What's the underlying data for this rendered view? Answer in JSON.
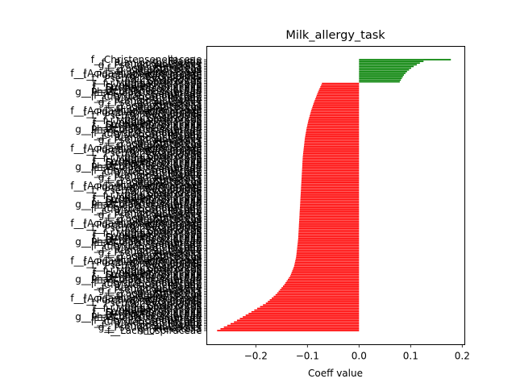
{
  "chart_data": {
    "type": "bar",
    "orientation": "horizontal",
    "title": "Milk_allergy_task",
    "xlabel": "Coeff value",
    "ylabel": "",
    "xlim": [
      -0.295,
      0.205
    ],
    "x_ticks": [
      {
        "value": -0.2,
        "label": "−0.2"
      },
      {
        "value": -0.1,
        "label": "−0.1"
      },
      {
        "value": 0.0,
        "label": "0.0"
      },
      {
        "value": 0.1,
        "label": "0.1"
      },
      {
        "value": 0.2,
        "label": "0.2"
      }
    ],
    "grid": false,
    "legend": "none",
    "colors": {
      "positive": "#008000",
      "negative": "#ff0000"
    },
    "bar_count": 160,
    "positive_bar_count": 14,
    "positive_values": [
      0.178,
      0.125,
      0.118,
      0.112,
      0.106,
      0.101,
      0.097,
      0.093,
      0.09,
      0.087,
      0.085,
      0.083,
      0.081,
      0.079
    ],
    "negative_value_profile": [
      -0.072,
      -0.08,
      -0.087,
      -0.093,
      -0.098,
      -0.102,
      -0.105,
      -0.107,
      -0.109,
      -0.11,
      -0.111,
      -0.112,
      -0.113,
      -0.114,
      -0.115,
      -0.116,
      -0.117,
      -0.118,
      -0.12,
      -0.122,
      -0.126,
      -0.133,
      -0.145,
      -0.16,
      -0.18,
      -0.21,
      -0.24,
      -0.275
    ],
    "visible_labels": [
      "f__Christensenellaceae",
      "g__Blautia",
      "f__Ruminococcaceae",
      "g__Pseudoramibacter",
      "g__Prevotella",
      "f__Lachnospiraceae",
      "g__Streptococcus",
      "f__Alcaligenaceae",
      "f__[Acidaminobacteraceae]",
      "f__Porphyromonadaceae",
      "g__Bacteroides",
      "f__Pseudomonadaceae",
      "g__Clostridium",
      "g__Coprococcus",
      "f__Mogibacteriaceae",
      "f__Hyphomicrobiaceae",
      "f__Succinivibrionaceae",
      "f__Peptococcaceae",
      "f__Dehalobacteriaceae",
      "g__Phascolarctobacterium",
      "g__Gemmiger",
      "f__Erysipelotrichaceae"
    ]
  }
}
